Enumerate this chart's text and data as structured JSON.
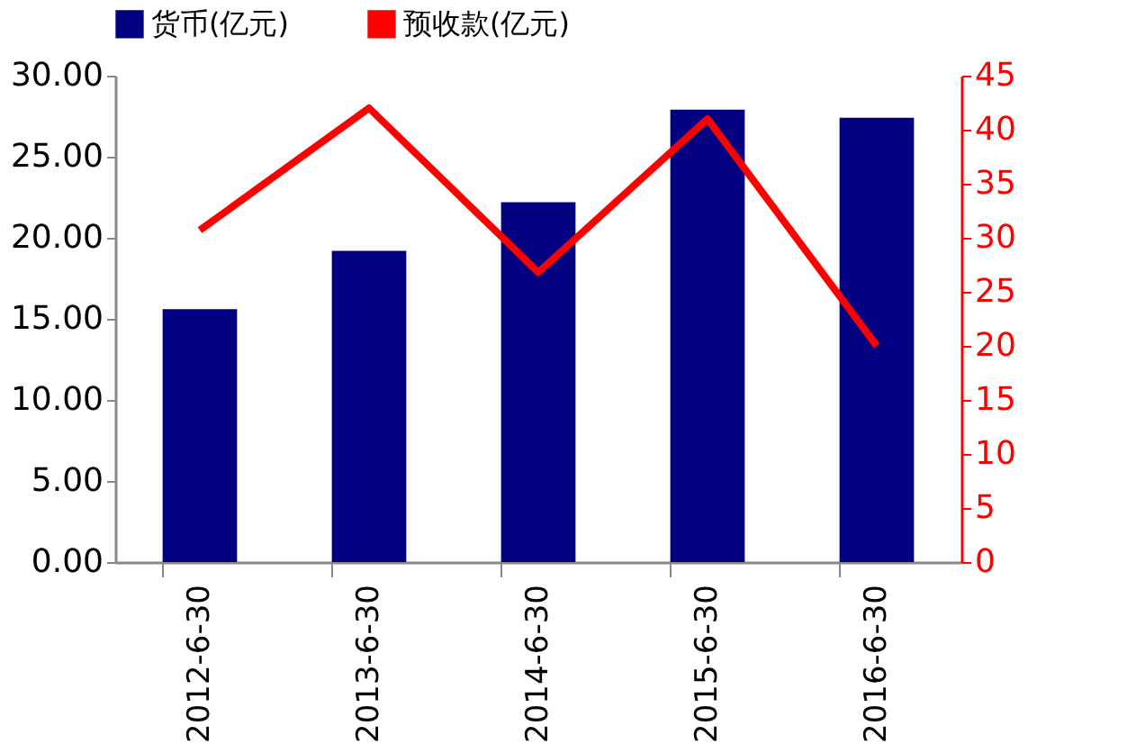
{
  "chart_data": {
    "type": "bar",
    "categories": [
      "2012-6-30",
      "2013-6-30",
      "2014-6-30",
      "2015-6-30",
      "2016-6-30"
    ],
    "series": [
      {
        "name": "货币(亿元)",
        "color": "#000080",
        "values": [
          15.6,
          19.2,
          22.2,
          27.9,
          27.4
        ]
      },
      {
        "name": "预收款(亿元)",
        "type": "line",
        "axis": "y2",
        "color": "#ff0000",
        "values": [
          30.7,
          42,
          26.8,
          41,
          20
        ]
      }
    ],
    "ylim": [
      0,
      30
    ],
    "yticks": [
      {
        "value": 0,
        "label": "0.00"
      },
      {
        "value": 5,
        "label": "5.00"
      },
      {
        "value": 10,
        "label": "10.00"
      },
      {
        "value": 15,
        "label": "15.00"
      },
      {
        "value": 20,
        "label": "20.00"
      },
      {
        "value": 25,
        "label": "25.00"
      },
      {
        "value": 30,
        "label": "30.00"
      }
    ],
    "y2lim": [
      0,
      45
    ],
    "y2ticks": [
      0,
      5,
      10,
      15,
      20,
      25,
      30,
      35,
      40,
      45
    ],
    "legend": "top",
    "grid": false
  }
}
